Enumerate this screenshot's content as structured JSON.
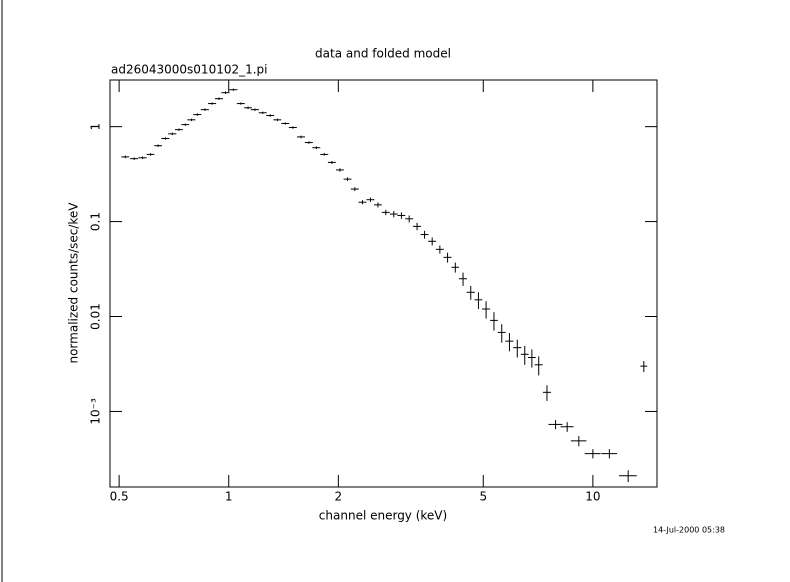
{
  "chart_data": {
    "type": "scatter",
    "title": "data and folded model",
    "subtitle": "ad26043000s010102_1.pi",
    "x_label": "channel energy (keV)",
    "y_label": "normalized counts/sec/keV",
    "timestamp": "14-Jul-2000 05:38",
    "log_x": true,
    "log_y": true,
    "xlim": [
      0.472,
      15
    ],
    "ylim": [
      0.00016,
      3.1
    ],
    "xticks": [
      0.5,
      1,
      2,
      5,
      10
    ],
    "yticks": [
      {
        "value": 1,
        "label": "1"
      },
      {
        "value": 0.1,
        "label": "0.1"
      },
      {
        "value": 0.01,
        "label": "0.01"
      },
      {
        "value": 0.001,
        "label": "10⁻³"
      }
    ],
    "color": "#000000",
    "x": [
      0.52,
      0.55,
      0.58,
      0.61,
      0.64,
      0.67,
      0.7,
      0.73,
      0.76,
      0.79,
      0.82,
      0.86,
      0.9,
      0.94,
      0.98,
      1.03,
      1.08,
      1.13,
      1.18,
      1.24,
      1.3,
      1.36,
      1.43,
      1.5,
      1.58,
      1.66,
      1.74,
      1.83,
      1.92,
      2.02,
      2.12,
      2.22,
      2.33,
      2.45,
      2.57,
      2.7,
      2.84,
      2.98,
      3.13,
      3.29,
      3.45,
      3.62,
      3.8,
      3.99,
      4.19,
      4.4,
      4.62,
      4.85,
      5.09,
      5.35,
      5.62,
      5.9,
      6.2,
      6.5,
      6.8,
      7.1,
      7.48,
      7.9,
      8.5,
      9.15,
      10.0,
      11.1,
      12.5,
      13.8
    ],
    "values": [
      0.48,
      0.46,
      0.47,
      0.51,
      0.63,
      0.75,
      0.84,
      0.93,
      1.05,
      1.18,
      1.34,
      1.51,
      1.75,
      1.97,
      2.28,
      2.45,
      1.75,
      1.58,
      1.51,
      1.4,
      1.31,
      1.18,
      1.08,
      0.98,
      0.78,
      0.68,
      0.6,
      0.51,
      0.42,
      0.35,
      0.28,
      0.22,
      0.16,
      0.17,
      0.15,
      0.125,
      0.12,
      0.116,
      0.107,
      0.089,
      0.073,
      0.062,
      0.051,
      0.042,
      0.033,
      0.025,
      0.018,
      0.015,
      0.012,
      0.0091,
      0.0068,
      0.0055,
      0.0047,
      0.004,
      0.0037,
      0.0031,
      0.00159,
      0.00073,
      0.00069,
      0.00049,
      0.00036,
      0.00036,
      0.00021,
      0.003
    ],
    "xerr": [
      0.013,
      0.014,
      0.015,
      0.015,
      0.016,
      0.017,
      0.018,
      0.018,
      0.019,
      0.02,
      0.021,
      0.022,
      0.023,
      0.024,
      0.025,
      0.026,
      0.027,
      0.028,
      0.03,
      0.031,
      0.033,
      0.034,
      0.036,
      0.038,
      0.04,
      0.042,
      0.044,
      0.046,
      0.048,
      0.05,
      0.053,
      0.056,
      0.058,
      0.061,
      0.064,
      0.068,
      0.071,
      0.075,
      0.078,
      0.082,
      0.086,
      0.09,
      0.095,
      0.1,
      0.1,
      0.11,
      0.12,
      0.12,
      0.13,
      0.13,
      0.14,
      0.15,
      0.16,
      0.16,
      0.17,
      0.18,
      0.19,
      0.35,
      0.35,
      0.45,
      0.5,
      0.55,
      0.7,
      0.3
    ],
    "yerr": [
      0.015,
      0.014,
      0.014,
      0.015,
      0.019,
      0.022,
      0.025,
      0.028,
      0.03,
      0.035,
      0.04,
      0.045,
      0.05,
      0.06,
      0.07,
      0.07,
      0.05,
      0.05,
      0.045,
      0.04,
      0.04,
      0.035,
      0.03,
      0.03,
      0.025,
      0.02,
      0.02,
      0.015,
      0.015,
      0.014,
      0.012,
      0.01,
      0.008,
      0.009,
      0.009,
      0.008,
      0.009,
      0.009,
      0.009,
      0.008,
      0.007,
      0.006,
      0.005,
      0.005,
      0.004,
      0.004,
      0.003,
      0.003,
      0.0025,
      0.002,
      0.0015,
      0.0012,
      0.001,
      0.0009,
      0.0008,
      0.0007,
      0.0003,
      8e-05,
      8e-05,
      6e-05,
      4e-05,
      4e-05,
      3e-05,
      0.0004
    ]
  }
}
